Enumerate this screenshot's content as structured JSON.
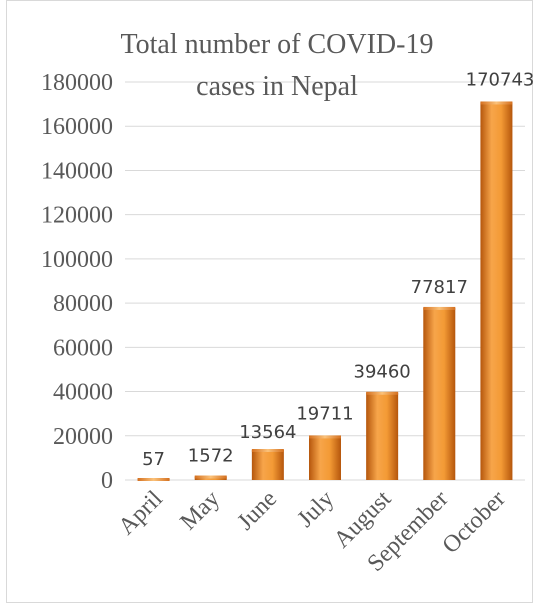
{
  "chart_data": {
    "type": "bar",
    "title_line1": "Total number of COVID-19",
    "title_line2": "cases in Nepal",
    "categories": [
      "April",
      "May",
      "June",
      "July",
      "August",
      "September",
      "October"
    ],
    "values": [
      57,
      1572,
      13564,
      19711,
      39460,
      77817,
      170743
    ],
    "data_labels": [
      "57",
      "1572",
      "13564",
      "19711",
      "39460",
      "77817",
      "170743"
    ],
    "yticks": [
      "0",
      "20000",
      "40000",
      "60000",
      "80000",
      "100000",
      "120000",
      "140000",
      "160000",
      "180000"
    ],
    "ylim": [
      0,
      180000
    ],
    "grid": true,
    "legend": "none",
    "bar_color": "#e07b1f"
  }
}
